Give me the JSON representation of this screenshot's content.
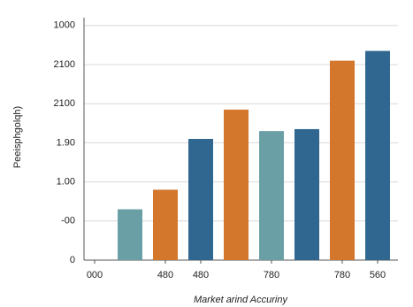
{
  "chart_data": {
    "type": "bar",
    "x_label": "Market arind Accuriny",
    "y_label": "Peeisphgolqh)",
    "categories": [
      "000",
      null,
      "480",
      "480",
      null,
      "780",
      null,
      "780",
      "560"
    ],
    "values": [
      null,
      1.3,
      1.8,
      3.1,
      3.85,
      3.3,
      3.35,
      5.1,
      5.35
    ],
    "colors": [
      null,
      "#6b9fa6",
      "#d2772b",
      "#2f6791",
      "#d2772b",
      "#6b9fa6",
      "#2f6791",
      "#d2772b",
      "#2f6791"
    ],
    "ylim": [
      0,
      6.2
    ],
    "yticks": [
      0,
      {
        "value": 1,
        "label": "-00"
      },
      {
        "value": 2,
        "label": "1.00"
      },
      {
        "value": 3,
        "label": "1.90"
      },
      {
        "value": 4,
        "label": "2100"
      },
      {
        "value": 5,
        "label": "2100"
      },
      {
        "value": 6,
        "label": "1000"
      }
    ],
    "grid": true
  }
}
